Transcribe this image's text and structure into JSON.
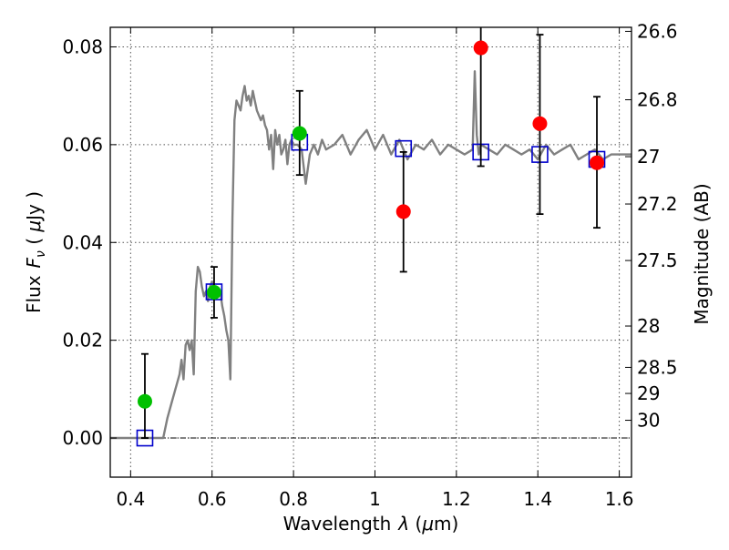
{
  "chart_data": {
    "type": "scatter",
    "xlabel": {
      "text": "Wavelength",
      "symbol": "λ",
      "unit_open": " (",
      "unit_mu": "μ",
      "unit_rest": "m)"
    },
    "ylabel": {
      "text": "Flux",
      "symbol": "F",
      "subscript": "ν",
      "unit_open": " ( ",
      "unit_mu": "μ",
      "unit_rest": "Jy )"
    },
    "y2label": "Magnitude (AB)",
    "xlim": [
      0.35,
      1.63
    ],
    "ylim": [
      -0.008,
      0.084
    ],
    "x_ticks": [
      0.4,
      0.6,
      0.8,
      1.0,
      1.2,
      1.4,
      1.6
    ],
    "x_tick_labels": [
      "0.4",
      "0.6",
      "0.8",
      "1",
      "1.2",
      "1.4",
      "1.6"
    ],
    "y_ticks": [
      0.0,
      0.02,
      0.04,
      0.06,
      0.08
    ],
    "y_tick_labels": [
      "0.00",
      "0.02",
      "0.04",
      "0.06",
      "0.08"
    ],
    "mag_ticks": [
      {
        "mag": 26.6,
        "label": "26.6"
      },
      {
        "mag": 26.8,
        "label": "26.8"
      },
      {
        "mag": 27.0,
        "label": "27"
      },
      {
        "mag": 27.2,
        "label": "27.2"
      },
      {
        "mag": 27.5,
        "label": "27.5"
      },
      {
        "mag": 28.0,
        "label": "28"
      },
      {
        "mag": 28.5,
        "label": "28.5"
      },
      {
        "mag": 29.0,
        "label": "29"
      },
      {
        "mag": 30.0,
        "label": "30"
      }
    ],
    "grid": true,
    "colors": {
      "template": "#808080",
      "detection": "#00c000",
      "nondetection": "#ff0000",
      "model": "#0000cc",
      "errorbar": "#000000",
      "zero_line": "#000000"
    },
    "template_spectrum": {
      "x": [
        0.35,
        0.48,
        0.49,
        0.5,
        0.51,
        0.52,
        0.525,
        0.53,
        0.535,
        0.54,
        0.545,
        0.55,
        0.555,
        0.56,
        0.565,
        0.57,
        0.575,
        0.58,
        0.585,
        0.59,
        0.595,
        0.6,
        0.605,
        0.61,
        0.615,
        0.62,
        0.625,
        0.63,
        0.635,
        0.64,
        0.645,
        0.65,
        0.655,
        0.66,
        0.665,
        0.67,
        0.675,
        0.68,
        0.685,
        0.69,
        0.695,
        0.7,
        0.705,
        0.71,
        0.715,
        0.72,
        0.725,
        0.73,
        0.735,
        0.74,
        0.745,
        0.75,
        0.755,
        0.76,
        0.765,
        0.77,
        0.775,
        0.78,
        0.785,
        0.79,
        0.795,
        0.8,
        0.81,
        0.82,
        0.83,
        0.84,
        0.85,
        0.86,
        0.87,
        0.88,
        0.9,
        0.92,
        0.94,
        0.96,
        0.98,
        1.0,
        1.02,
        1.04,
        1.06,
        1.08,
        1.1,
        1.12,
        1.14,
        1.16,
        1.18,
        1.2,
        1.22,
        1.24,
        1.245,
        1.25,
        1.255,
        1.26,
        1.28,
        1.3,
        1.32,
        1.34,
        1.36,
        1.38,
        1.4,
        1.42,
        1.44,
        1.46,
        1.48,
        1.5,
        1.52,
        1.54,
        1.56,
        1.58,
        1.6,
        1.63
      ],
      "y": [
        0.0,
        0.0,
        0.004,
        0.007,
        0.01,
        0.013,
        0.016,
        0.012,
        0.019,
        0.02,
        0.018,
        0.02,
        0.013,
        0.03,
        0.035,
        0.034,
        0.031,
        0.029,
        0.03,
        0.028,
        0.031,
        0.032,
        0.03,
        0.031,
        0.029,
        0.03,
        0.027,
        0.025,
        0.022,
        0.02,
        0.012,
        0.045,
        0.065,
        0.069,
        0.068,
        0.067,
        0.07,
        0.072,
        0.069,
        0.07,
        0.068,
        0.071,
        0.069,
        0.067,
        0.066,
        0.065,
        0.066,
        0.064,
        0.063,
        0.059,
        0.062,
        0.055,
        0.063,
        0.06,
        0.062,
        0.058,
        0.059,
        0.061,
        0.056,
        0.06,
        0.061,
        0.06,
        0.06,
        0.059,
        0.052,
        0.058,
        0.06,
        0.058,
        0.061,
        0.059,
        0.06,
        0.062,
        0.058,
        0.061,
        0.063,
        0.059,
        0.062,
        0.058,
        0.061,
        0.057,
        0.06,
        0.059,
        0.061,
        0.058,
        0.06,
        0.059,
        0.058,
        0.059,
        0.075,
        0.062,
        0.058,
        0.06,
        0.059,
        0.058,
        0.06,
        0.059,
        0.058,
        0.059,
        0.057,
        0.06,
        0.058,
        0.059,
        0.06,
        0.057,
        0.058,
        0.059,
        0.057,
        0.058,
        0.058,
        0.058
      ]
    },
    "detections": [
      {
        "x": 0.435,
        "y": 0.0075,
        "yerr_low": 0.0,
        "yerr_high": 0.0172
      },
      {
        "x": 0.605,
        "y": 0.0298,
        "yerr_low": 0.0246,
        "yerr_high": 0.035
      },
      {
        "x": 0.815,
        "y": 0.0623,
        "yerr_low": 0.0538,
        "yerr_high": 0.071
      }
    ],
    "nondetections": [
      {
        "x": 1.07,
        "y": 0.0463,
        "yerr_low": 0.034,
        "yerr_high": 0.0585
      },
      {
        "x": 1.26,
        "y": 0.0798,
        "yerr_low": 0.0556,
        "yerr_high": 0.1
      },
      {
        "x": 1.405,
        "y": 0.0643,
        "yerr_low": 0.0458,
        "yerr_high": 0.0825
      },
      {
        "x": 1.545,
        "y": 0.0563,
        "yerr_low": 0.043,
        "yerr_high": 0.0698
      }
    ],
    "model_photometry": [
      {
        "x": 0.435,
        "y": 0.0
      },
      {
        "x": 0.605,
        "y": 0.0299
      },
      {
        "x": 0.815,
        "y": 0.0605
      },
      {
        "x": 1.07,
        "y": 0.0592
      },
      {
        "x": 1.26,
        "y": 0.0585
      },
      {
        "x": 1.405,
        "y": 0.058
      },
      {
        "x": 1.545,
        "y": 0.057
      }
    ]
  }
}
